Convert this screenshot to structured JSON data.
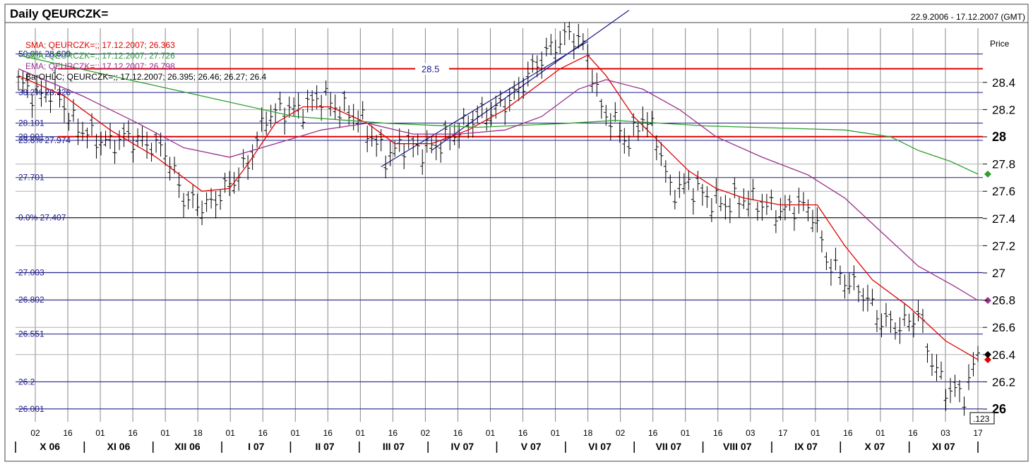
{
  "header": {
    "title": "Daily QEURCZK=",
    "date_range": "22.9.2006 - 17.12.2007 (GMT)"
  },
  "axis": {
    "price_label": "Price",
    "y_ticks": [
      "26",
      "26.2",
      "26.4",
      "26.6",
      "26.8",
      "27",
      "27.2",
      "27.4",
      "27.6",
      "27.8",
      "28",
      "28.2",
      "28.4"
    ],
    "bold_ticks": [
      "26",
      "28"
    ],
    "cursor_value": ".123"
  },
  "legend": [
    {
      "text": "SMA; QEURCZK=;; 17.12.2007; 26.363",
      "color": "#e00000"
    },
    {
      "text": "SMA; QEURCZK=;; 17.12.2007; 27.726",
      "color": "#2ea02e"
    },
    {
      "text": "EMA; QEURCZK=;; 17.12.2007; 26.798",
      "color": "#9b2f8e"
    },
    {
      "text": "BarOHLC; QEURCZK=;; 17.12.2007; 26.395; 26.46; 26.27; 26.4",
      "color": "#000000"
    }
  ],
  "level_labels": [
    {
      "text": "50.0%  28.609",
      "value": 28.609
    },
    {
      "text": "38.2%  28.326",
      "value": 28.326
    },
    {
      "text": "28.101",
      "value": 28.101
    },
    {
      "text": "28.001",
      "value": 28.001
    },
    {
      "text": "23.6%  27.974",
      "value": 27.974
    },
    {
      "text": "27.701",
      "value": 27.701
    },
    {
      "text": "0.0%    27.407",
      "value": 27.407
    },
    {
      "text": "27.003",
      "value": 27.003
    },
    {
      "text": "26.802",
      "value": 26.802
    },
    {
      "text": "26.551",
      "value": 26.551
    },
    {
      "text": "26.2",
      "value": 26.2
    },
    {
      "text": "26.001",
      "value": 26.001
    }
  ],
  "red_lines": [
    {
      "value": 28.5,
      "label": "28.5"
    },
    {
      "value": 28.001,
      "label": ""
    }
  ],
  "x_day_ticks": [
    "02",
    "16",
    "01",
    "16",
    "01",
    "18",
    "01",
    "16",
    "01",
    "16",
    "01",
    "16",
    "02",
    "16",
    "01",
    "16",
    "01",
    "18",
    "02",
    "16",
    "01",
    "16",
    "03",
    "17",
    "01",
    "16",
    "01",
    "16",
    "03",
    "17"
  ],
  "x_months": [
    "X 06",
    "XI 06",
    "XII 06",
    "I 07",
    "II 07",
    "III 07",
    "IV 07",
    "V 07",
    "VI 07",
    "VII 07",
    "VIII 07",
    "IX 07",
    "X 07",
    "XI 07"
  ],
  "chart_data": {
    "type": "line",
    "title": "Daily QEURCZK=",
    "date_range": "22.9.2006 - 17.12.2007 (GMT)",
    "ylabel": "Price",
    "ylim": [
      25.9,
      28.95
    ],
    "months": [
      "X 06",
      "XI 06",
      "XII 06",
      "I 07",
      "II 07",
      "III 07",
      "IV 07",
      "V 07",
      "VI 07",
      "VII 07",
      "VIII 07",
      "IX 07",
      "X 07",
      "XI 07"
    ],
    "price_anchors": [
      [
        0,
        28.4
      ],
      [
        4,
        28.3
      ],
      [
        8,
        28.35
      ],
      [
        12,
        28.1
      ],
      [
        16,
        28.0
      ],
      [
        20,
        27.95
      ],
      [
        24,
        28.0
      ],
      [
        28,
        27.95
      ],
      [
        32,
        27.9
      ],
      [
        36,
        27.55
      ],
      [
        39,
        27.5
      ],
      [
        42,
        27.5
      ],
      [
        46,
        27.65
      ],
      [
        50,
        27.8
      ],
      [
        54,
        28.15
      ],
      [
        58,
        28.2
      ],
      [
        62,
        28.2
      ],
      [
        66,
        28.3
      ],
      [
        70,
        28.2
      ],
      [
        74,
        28.15
      ],
      [
        78,
        27.95
      ],
      [
        80,
        27.85
      ],
      [
        84,
        27.95
      ],
      [
        88,
        27.9
      ],
      [
        92,
        27.95
      ],
      [
        96,
        28.05
      ],
      [
        100,
        28.15
      ],
      [
        104,
        28.2
      ],
      [
        108,
        28.3
      ],
      [
        112,
        28.5
      ],
      [
        116,
        28.65
      ],
      [
        120,
        28.75
      ],
      [
        122,
        28.72
      ],
      [
        124,
        28.6
      ],
      [
        127,
        28.2
      ],
      [
        130,
        28.1
      ],
      [
        133,
        27.95
      ],
      [
        136,
        28.15
      ],
      [
        139,
        28.0
      ],
      [
        142,
        27.6
      ],
      [
        146,
        27.65
      ],
      [
        150,
        27.55
      ],
      [
        154,
        27.5
      ],
      [
        158,
        27.55
      ],
      [
        162,
        27.5
      ],
      [
        166,
        27.45
      ],
      [
        170,
        27.5
      ],
      [
        173,
        27.45
      ],
      [
        176,
        27.1
      ],
      [
        180,
        26.95
      ],
      [
        184,
        26.85
      ],
      [
        188,
        26.65
      ],
      [
        192,
        26.6
      ],
      [
        196,
        26.7
      ],
      [
        199,
        26.35
      ],
      [
        202,
        26.15
      ],
      [
        206,
        26.1
      ],
      [
        209,
        26.4
      ]
    ],
    "series": [
      {
        "name": "SMA; QEURCZK=;; 17.12.2007; 26.363",
        "color": "#e00000",
        "last": 26.363,
        "values": [
          [
            0,
            28.45
          ],
          [
            10,
            28.3
          ],
          [
            20,
            28.05
          ],
          [
            30,
            27.85
          ],
          [
            40,
            27.6
          ],
          [
            46,
            27.62
          ],
          [
            50,
            27.8
          ],
          [
            56,
            28.1
          ],
          [
            62,
            28.22
          ],
          [
            68,
            28.22
          ],
          [
            76,
            28.1
          ],
          [
            82,
            27.95
          ],
          [
            90,
            27.95
          ],
          [
            98,
            28.05
          ],
          [
            106,
            28.2
          ],
          [
            112,
            28.35
          ],
          [
            118,
            28.5
          ],
          [
            124,
            28.6
          ],
          [
            128,
            28.45
          ],
          [
            134,
            28.15
          ],
          [
            140,
            27.95
          ],
          [
            146,
            27.75
          ],
          [
            152,
            27.62
          ],
          [
            158,
            27.55
          ],
          [
            166,
            27.5
          ],
          [
            174,
            27.5
          ],
          [
            180,
            27.2
          ],
          [
            186,
            26.95
          ],
          [
            194,
            26.75
          ],
          [
            202,
            26.5
          ],
          [
            209,
            26.363
          ]
        ]
      },
      {
        "name": "SMA; QEURCZK=;; 17.12.2007; 27.726",
        "color": "#2ea02e",
        "last": 27.726,
        "values": [
          [
            0,
            28.6
          ],
          [
            20,
            28.45
          ],
          [
            40,
            28.3
          ],
          [
            60,
            28.15
          ],
          [
            80,
            28.1
          ],
          [
            100,
            28.07
          ],
          [
            120,
            28.1
          ],
          [
            130,
            28.12
          ],
          [
            150,
            28.08
          ],
          [
            170,
            28.06
          ],
          [
            180,
            28.05
          ],
          [
            190,
            28.0
          ],
          [
            196,
            27.9
          ],
          [
            203,
            27.82
          ],
          [
            209,
            27.726
          ]
        ]
      },
      {
        "name": "EMA; QEURCZK=;; 17.12.2007; 26.798",
        "color": "#9b2f8e",
        "last": 26.798,
        "values": [
          [
            0,
            28.5
          ],
          [
            14,
            28.3
          ],
          [
            26,
            28.1
          ],
          [
            36,
            27.92
          ],
          [
            46,
            27.85
          ],
          [
            56,
            27.95
          ],
          [
            66,
            28.05
          ],
          [
            76,
            28.1
          ],
          [
            86,
            28.02
          ],
          [
            96,
            28.02
          ],
          [
            106,
            28.05
          ],
          [
            114,
            28.15
          ],
          [
            122,
            28.35
          ],
          [
            128,
            28.42
          ],
          [
            136,
            28.35
          ],
          [
            144,
            28.2
          ],
          [
            152,
            28.0
          ],
          [
            162,
            27.85
          ],
          [
            172,
            27.72
          ],
          [
            180,
            27.55
          ],
          [
            188,
            27.3
          ],
          [
            196,
            27.05
          ],
          [
            204,
            26.9
          ],
          [
            209,
            26.798
          ]
        ]
      }
    ],
    "horizontal_levels": [
      28.609,
      28.5,
      28.326,
      28.101,
      28.001,
      27.974,
      27.701,
      27.407,
      27.003,
      26.802,
      26.551,
      26.2,
      26.001
    ],
    "channel": {
      "lower": [
        [
          79,
          27.78
        ],
        [
          124,
          28.7
        ]
      ],
      "upper": [
        [
          90,
          27.9
        ],
        [
          133,
          28.93
        ]
      ]
    },
    "grid": true,
    "legend_placement": "top-left"
  }
}
